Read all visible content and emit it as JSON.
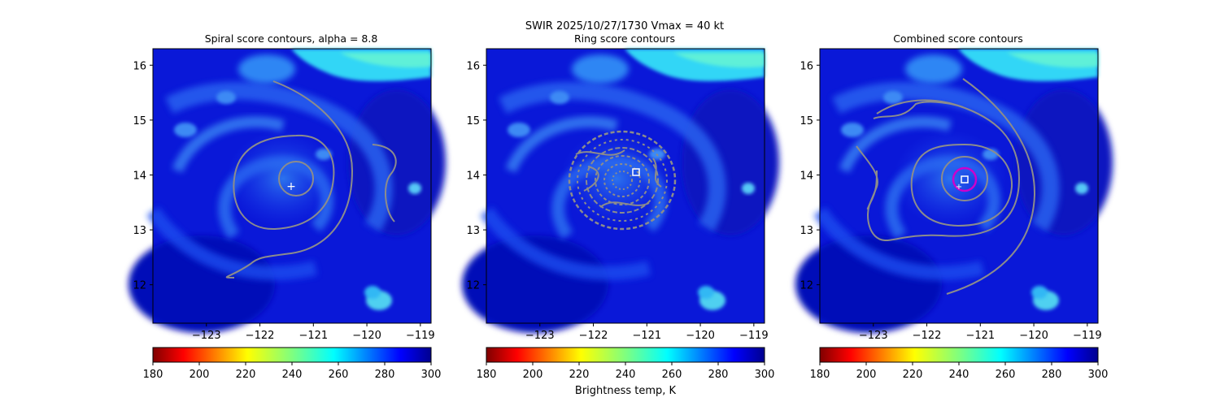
{
  "suptitle": "SWIR  2025/10/27/1730    Vmax = 40 kt",
  "colorbar": {
    "label": "Brightness temp, K",
    "min": 180,
    "max": 300,
    "ticks": [
      180,
      200,
      220,
      240,
      260,
      280,
      300
    ],
    "colormap": "jet_reversed"
  },
  "chart_data": [
    {
      "type": "heatmap",
      "title": "Spiral score contours, alpha =  8.8",
      "xlim": [
        -124.0,
        -118.8
      ],
      "ylim": [
        11.3,
        16.3
      ],
      "xticks": [
        -123,
        -122,
        -121,
        -120,
        -119
      ],
      "yticks": [
        12,
        13,
        14,
        15,
        16
      ],
      "center_marker": {
        "symbol": "+",
        "lon": -121.35,
        "lat": 13.8
      },
      "contour_color": "#888888"
    },
    {
      "type": "heatmap",
      "title": "Ring score contours",
      "xlim": [
        -124.0,
        -118.8
      ],
      "ylim": [
        11.3,
        16.3
      ],
      "xticks": [
        -123,
        -122,
        -121,
        -120,
        -119
      ],
      "yticks": [
        12,
        13,
        14,
        15,
        16
      ],
      "center_marker": {
        "symbol": "square",
        "lon": -121.2,
        "lat": 14.05
      },
      "contour_color": "#888888"
    },
    {
      "type": "heatmap",
      "title": "Combined score contours",
      "xlim": [
        -124.0,
        -118.8
      ],
      "ylim": [
        11.3,
        16.3
      ],
      "xticks": [
        -123,
        -122,
        -121,
        -120,
        -119
      ],
      "yticks": [
        12,
        13,
        14,
        15,
        16
      ],
      "center_marker": {
        "symbol": "square",
        "lon": -121.25,
        "lat": 13.92
      },
      "first_guess_marker": {
        "symbol": "+",
        "lon": -121.35,
        "lat": 13.8
      },
      "max_contour_color": "#cc00cc",
      "contour_color": "#888888"
    }
  ]
}
